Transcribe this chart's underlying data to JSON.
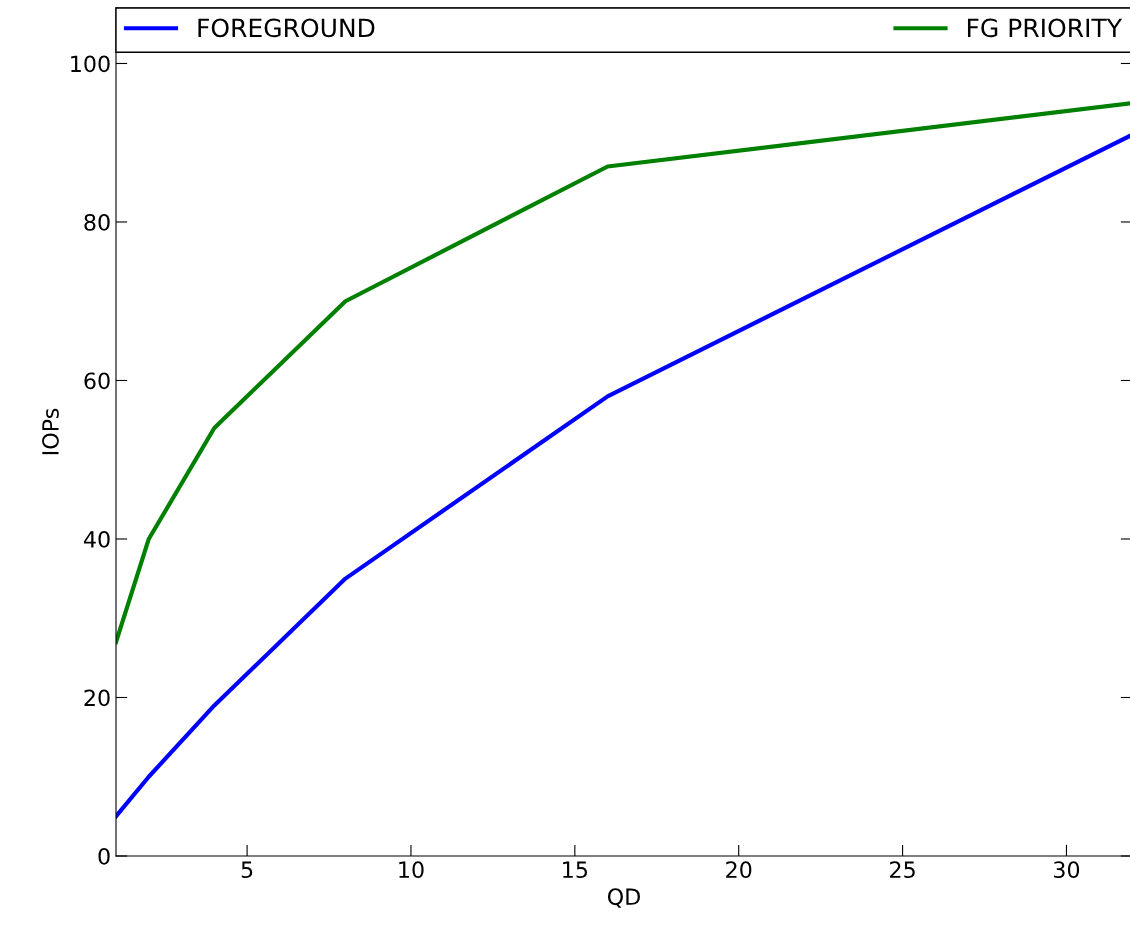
{
  "chart_data": {
    "type": "line",
    "xlabel": "QD",
    "ylabel": "IOPs",
    "x": [
      1,
      2,
      4,
      8,
      16,
      32
    ],
    "series": [
      {
        "name": "FOREGROUND",
        "color": "#0000ff",
        "values": [
          5,
          10,
          19,
          35,
          58,
          91
        ]
      },
      {
        "name": "FG PRIORITY",
        "color": "#008000",
        "values": [
          27,
          40,
          54,
          70,
          87,
          95
        ]
      }
    ],
    "xlim": [
      1,
      32
    ],
    "xticks": [
      5,
      10,
      15,
      20,
      25,
      30
    ],
    "ylim": [
      0,
      107
    ],
    "yticks": [
      0,
      20,
      40,
      60,
      80,
      100
    ],
    "legend": "top",
    "grid": false,
    "marker": "none",
    "line_style": "solid"
  }
}
